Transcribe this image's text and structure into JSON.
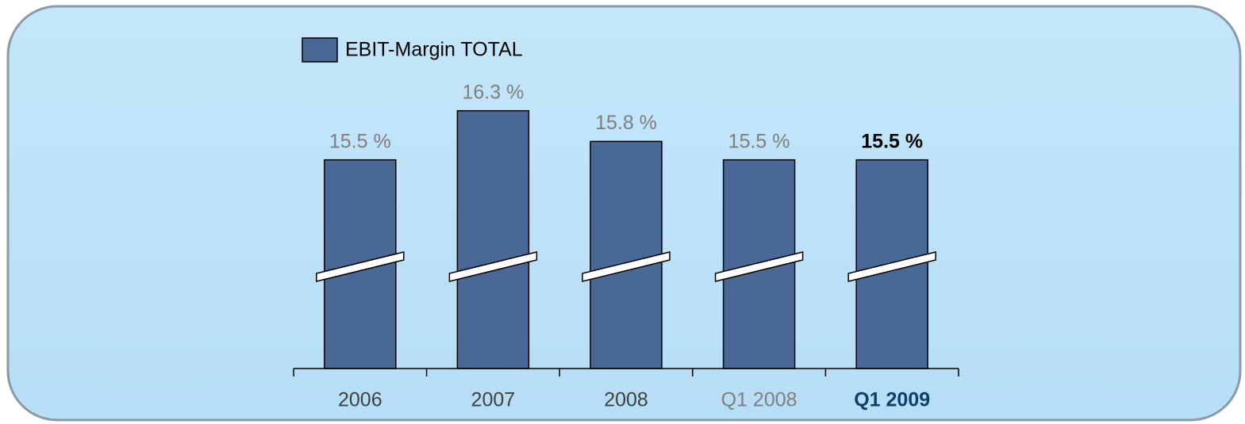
{
  "chart_data": {
    "type": "bar",
    "categories": [
      "2006",
      "2007",
      "2008",
      "Q1 2008",
      "Q1 2009"
    ],
    "series": [
      {
        "name": "EBIT-Margin TOTAL",
        "color": "#4a6896",
        "values": [
          15.5,
          16.3,
          15.8,
          15.5,
          15.5
        ],
        "value_labels": [
          "15.5 %",
          "16.3 %",
          "15.8 %",
          "15.5 %",
          "15.5 %"
        ]
      }
    ],
    "ylim": [
      12.1,
      16.8
    ]
  }
}
